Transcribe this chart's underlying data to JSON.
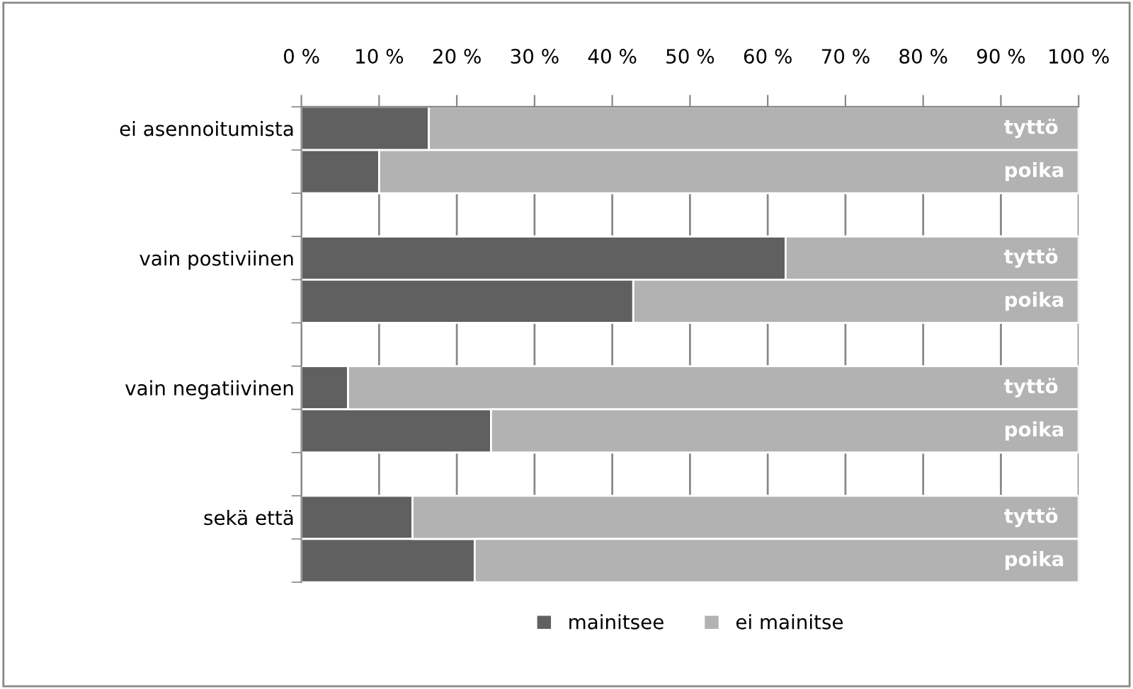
{
  "chart_data": {
    "type": "bar",
    "orientation": "horizontal",
    "stacked": true,
    "categories": [
      "ei asennoitumista",
      null,
      null,
      "vain postiviinen",
      null,
      null,
      "vain negatiivinen",
      null,
      null,
      "sekä että",
      null
    ],
    "series": [
      {
        "name": "mainitsee",
        "color": "#606060",
        "values": [
          16.4,
          10.0,
          null,
          62.3,
          42.7,
          null,
          6.0,
          24.4,
          null,
          14.3,
          22.3
        ]
      },
      {
        "name": "ei mainitse",
        "color": "#b2b2b2",
        "values": [
          83.6,
          90.0,
          null,
          37.7,
          57.3,
          null,
          94.0,
          75.6,
          null,
          85.7,
          77.7
        ],
        "value_labels": [
          "tyttö",
          "poika",
          null,
          "tyttö",
          "poika",
          null,
          "tyttö",
          "poika",
          null,
          "tyttö",
          "poika"
        ]
      }
    ],
    "xlim": [
      0,
      100
    ],
    "xticks": [
      {
        "value": 0,
        "label": "0 %"
      },
      {
        "value": 10,
        "label": "10 %"
      },
      {
        "value": 20,
        "label": "20 %"
      },
      {
        "value": 30,
        "label": "30 %"
      },
      {
        "value": 40,
        "label": "40 %"
      },
      {
        "value": 50,
        "label": "50 %"
      },
      {
        "value": 60,
        "label": "60 %"
      },
      {
        "value": 70,
        "label": "70 %"
      },
      {
        "value": 80,
        "label": "80 %"
      },
      {
        "value": 90,
        "label": "90 %"
      },
      {
        "value": 100,
        "label": "100 %"
      }
    ],
    "grid": "x",
    "legend": "bottom"
  }
}
